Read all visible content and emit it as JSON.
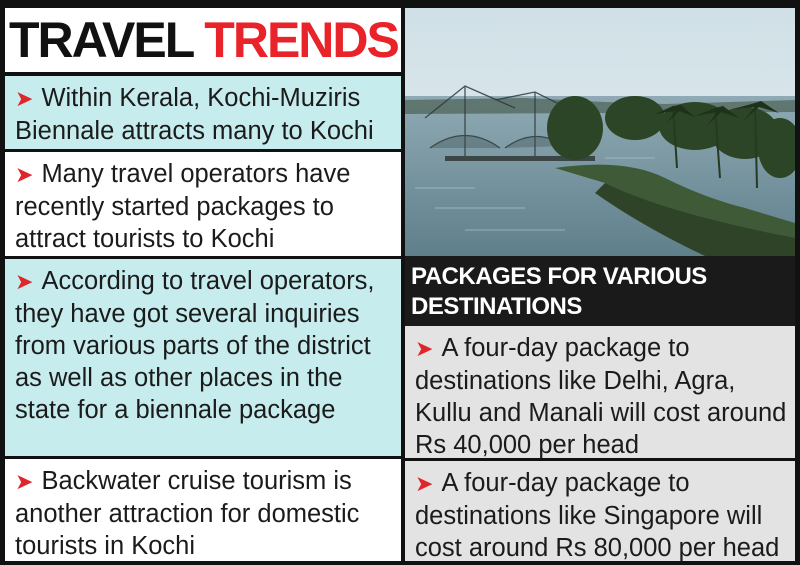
{
  "title": {
    "word1": "TRAVEL",
    "word2": "TRENDS"
  },
  "left_items": [
    {
      "text": "Within Kerala, Kochi-Muziris Biennale attracts many to Kochi"
    },
    {
      "text": "Many travel operators have recently started packages to attract tourists to Kochi"
    },
    {
      "text": "According to travel operators, they have got several inquiries from various parts of the district as well as other places in the state for a biennale package"
    },
    {
      "text": "Backwater cruise tourism is another attraction for domestic tourists in Kochi"
    }
  ],
  "packages": {
    "heading": "PACKAGES FOR VARIOUS DESTINATIONS",
    "items": [
      {
        "text": "A four-day package to destinations like Delhi, Agra, Kullu and Manali will cost around Rs 40,000 per head"
      },
      {
        "text": "A four-day package to destinations like Singapore will cost around Rs 80,000 per head"
      }
    ]
  },
  "colors": {
    "accent": "#e8232a",
    "teal_band": "#c6ecee",
    "grey_band": "#e3e3e3",
    "dark": "#1a1a1a"
  },
  "icons": {
    "bullet": "red-arrow-bullet-icon"
  }
}
